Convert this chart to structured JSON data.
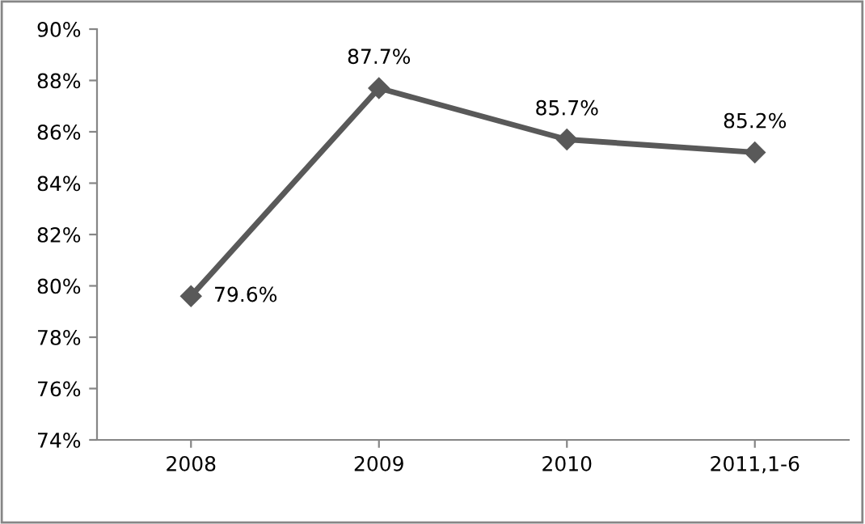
{
  "chart_data": {
    "type": "line",
    "categories": [
      "2008",
      "2009",
      "2010",
      "2011,1-6"
    ],
    "series": [
      {
        "color": "#595959",
        "values": [
          79.6,
          87.7,
          85.7,
          85.2
        ],
        "value_labels": [
          "79.6%",
          "87.7%",
          "85.7%",
          "85.2%"
        ]
      }
    ],
    "ylim": [
      74,
      90
    ],
    "yticks": [
      {
        "value": 74,
        "label": "74%"
      },
      {
        "value": 76,
        "label": "76%"
      },
      {
        "value": 78,
        "label": "78%"
      },
      {
        "value": 80,
        "label": "80%"
      },
      {
        "value": 82,
        "label": "82%"
      },
      {
        "value": 84,
        "label": "84%"
      },
      {
        "value": 86,
        "label": "86%"
      },
      {
        "value": 88,
        "label": "88%"
      },
      {
        "value": 90,
        "label": "90%"
      }
    ],
    "marker": "diamond",
    "line_style": "solid",
    "grid": false,
    "legend": false
  }
}
